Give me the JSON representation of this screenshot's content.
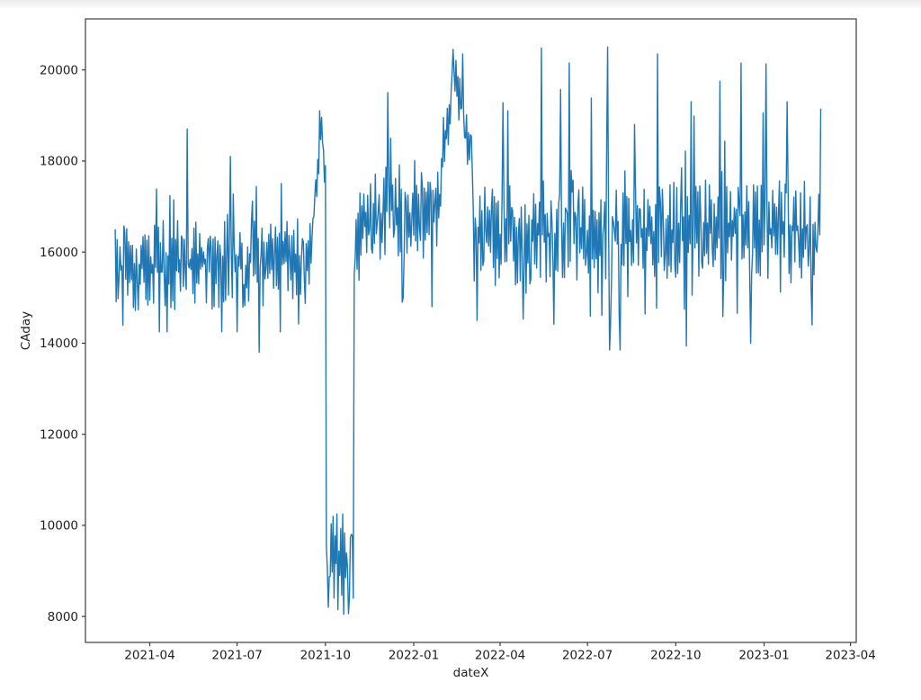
{
  "chart_data": {
    "type": "line",
    "title": "",
    "xlabel": "dateX",
    "ylabel": "CAday",
    "grid": false,
    "legend": "none",
    "line_color": "#1f77b4",
    "axis_color": "#3c3c3c",
    "tick_label_color": "#1f1f1f",
    "xlim": [
      "2021-01-24",
      "2023-04-07"
    ],
    "ylim": [
      7430,
      21120
    ],
    "x_ticks": [
      {
        "label": "2021-04",
        "date": "2021-04-01"
      },
      {
        "label": "2021-07",
        "date": "2021-07-01"
      },
      {
        "label": "2021-10",
        "date": "2021-10-01"
      },
      {
        "label": "2022-01",
        "date": "2022-01-01"
      },
      {
        "label": "2022-04",
        "date": "2022-04-01"
      },
      {
        "label": "2022-07",
        "date": "2022-07-01"
      },
      {
        "label": "2022-10",
        "date": "2022-10-01"
      },
      {
        "label": "2023-01",
        "date": "2023-01-01"
      },
      {
        "label": "2023-04",
        "date": "2023-04-01"
      }
    ],
    "y_ticks": [
      8000,
      10000,
      12000,
      14000,
      16000,
      18000,
      20000
    ],
    "series": [
      {
        "name": "CAday",
        "cadence": "daily",
        "start_date": "2021-02-24",
        "end_date": "2023-03-01",
        "reconstruction": {
          "comment_readable_structure": "noisy daily series ~14300-17600 Mar-Sep 2021; ramp to 19100 late Sep 2021; crash to 8050-10250 for Oct 2021; recovery ~16000-18000 Nov-Dec 2021 with 19500 spike; hump to 20450 Feb-Mar 2022; then wide noisy band 13850-20500 through Mar 2023 ending ~19150",
          "seed": 20210224,
          "tails": {
            "p1": 0.18,
            "m1": 1.8,
            "p2": 0.05,
            "m2": 2.5
          },
          "zigzag_flip_prob": 0.7,
          "segments": [
            {
              "d0": 0,
              "d1": 205,
              "b0": 15650,
              "b1": 15850,
              "amp": 1000,
              "min": 14250,
              "max": 17600
            },
            {
              "d0": 206,
              "d1": 215,
              "b0": 16600,
              "b1": 18800,
              "amp": 650,
              "min": 15900,
              "max": 19100
            },
            {
              "d0": 216,
              "d1": 219,
              "b0": 18300,
              "b1": 17400,
              "amp": 700,
              "min": 16500,
              "max": 19000
            },
            {
              "d0": 220,
              "d1": 248,
              "b0": 9250,
              "b1": 9050,
              "amp": 800,
              "min": 8050,
              "max": 10250
            },
            {
              "d0": 249,
              "d1": 258,
              "b0": 16200,
              "b1": 16800,
              "amp": 800,
              "min": 15300,
              "max": 17800
            },
            {
              "d0": 259,
              "d1": 309,
              "b0": 16850,
              "b1": 16700,
              "amp": 950,
              "min": 14900,
              "max": 18500
            },
            {
              "d0": 310,
              "d1": 340,
              "b0": 16600,
              "b1": 17100,
              "amp": 1000,
              "min": 14800,
              "max": 18800
            },
            {
              "d0": 341,
              "d1": 355,
              "b0": 18300,
              "b1": 19900,
              "amp": 550,
              "min": 17400,
              "max": 20450
            },
            {
              "d0": 356,
              "d1": 371,
              "b0": 19650,
              "b1": 18100,
              "amp": 600,
              "min": 17100,
              "max": 20350
            },
            {
              "d0": 372,
              "d1": 735,
              "b0": 16350,
              "b1": 16500,
              "amp": 1100,
              "min": 13850,
              "max": 19600
            }
          ],
          "anchors": [
            [
              0,
              16500
            ],
            [
              75,
              18700
            ],
            [
              120,
              18100
            ],
            [
              150,
              13800
            ],
            [
              205,
              16300
            ],
            [
              213,
              19100
            ],
            [
              216,
              18400
            ],
            [
              219,
              17900
            ],
            [
              222,
              8200
            ],
            [
              227,
              10200
            ],
            [
              232,
              8150
            ],
            [
              237,
              10250
            ],
            [
              243,
              8060
            ],
            [
              246,
              9800
            ],
            [
              248,
              8400
            ],
            [
              249,
              15500
            ],
            [
              284,
              19500
            ],
            [
              300,
              15000
            ],
            [
              330,
              14800
            ],
            [
              352,
              20450
            ],
            [
              362,
              20350
            ],
            [
              372,
              17800
            ],
            [
              377,
              14500
            ],
            [
              404,
              19280
            ],
            [
              409,
              19100
            ],
            [
              425,
              14530
            ],
            [
              444,
              20480
            ],
            [
              464,
              19570
            ],
            [
              473,
              20150
            ],
            [
              496,
              19380
            ],
            [
              513,
              20500
            ],
            [
              516,
              14390
            ],
            [
              526,
              13850
            ],
            [
              541,
              18800
            ],
            [
              565,
              20350
            ],
            [
              600,
              19300
            ],
            [
              630,
              19750
            ],
            [
              652,
              20150
            ],
            [
              662,
              14000
            ],
            [
              678,
              20130
            ],
            [
              700,
              19300
            ],
            [
              726,
              14400
            ],
            [
              731,
              16000
            ],
            [
              735,
              19150
            ]
          ]
        }
      }
    ]
  }
}
